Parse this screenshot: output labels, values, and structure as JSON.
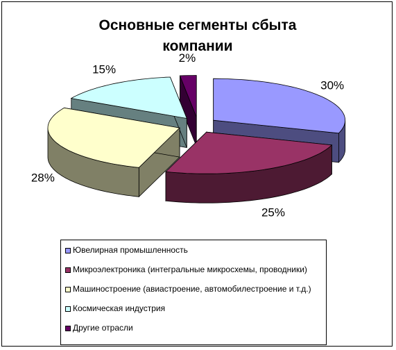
{
  "chart_data": {
    "type": "pie",
    "title": "Основные сегменты сбыта компании",
    "categories": [
      "Ювелирная промышленность",
      "Микроэлектроника (интегральные микросхемы, проводники)",
      "Машиностроение (авиастроение, автомобилестроение и т.д.)",
      "Космическая индустрия",
      "Другие отрасли"
    ],
    "values": [
      30,
      25,
      28,
      15,
      2
    ],
    "value_labels": [
      "30%",
      "25%",
      "28%",
      "15%",
      "2%"
    ],
    "colors": [
      "#9999ff",
      "#993366",
      "#ffffcc",
      "#ccffff",
      "#660066"
    ]
  }
}
